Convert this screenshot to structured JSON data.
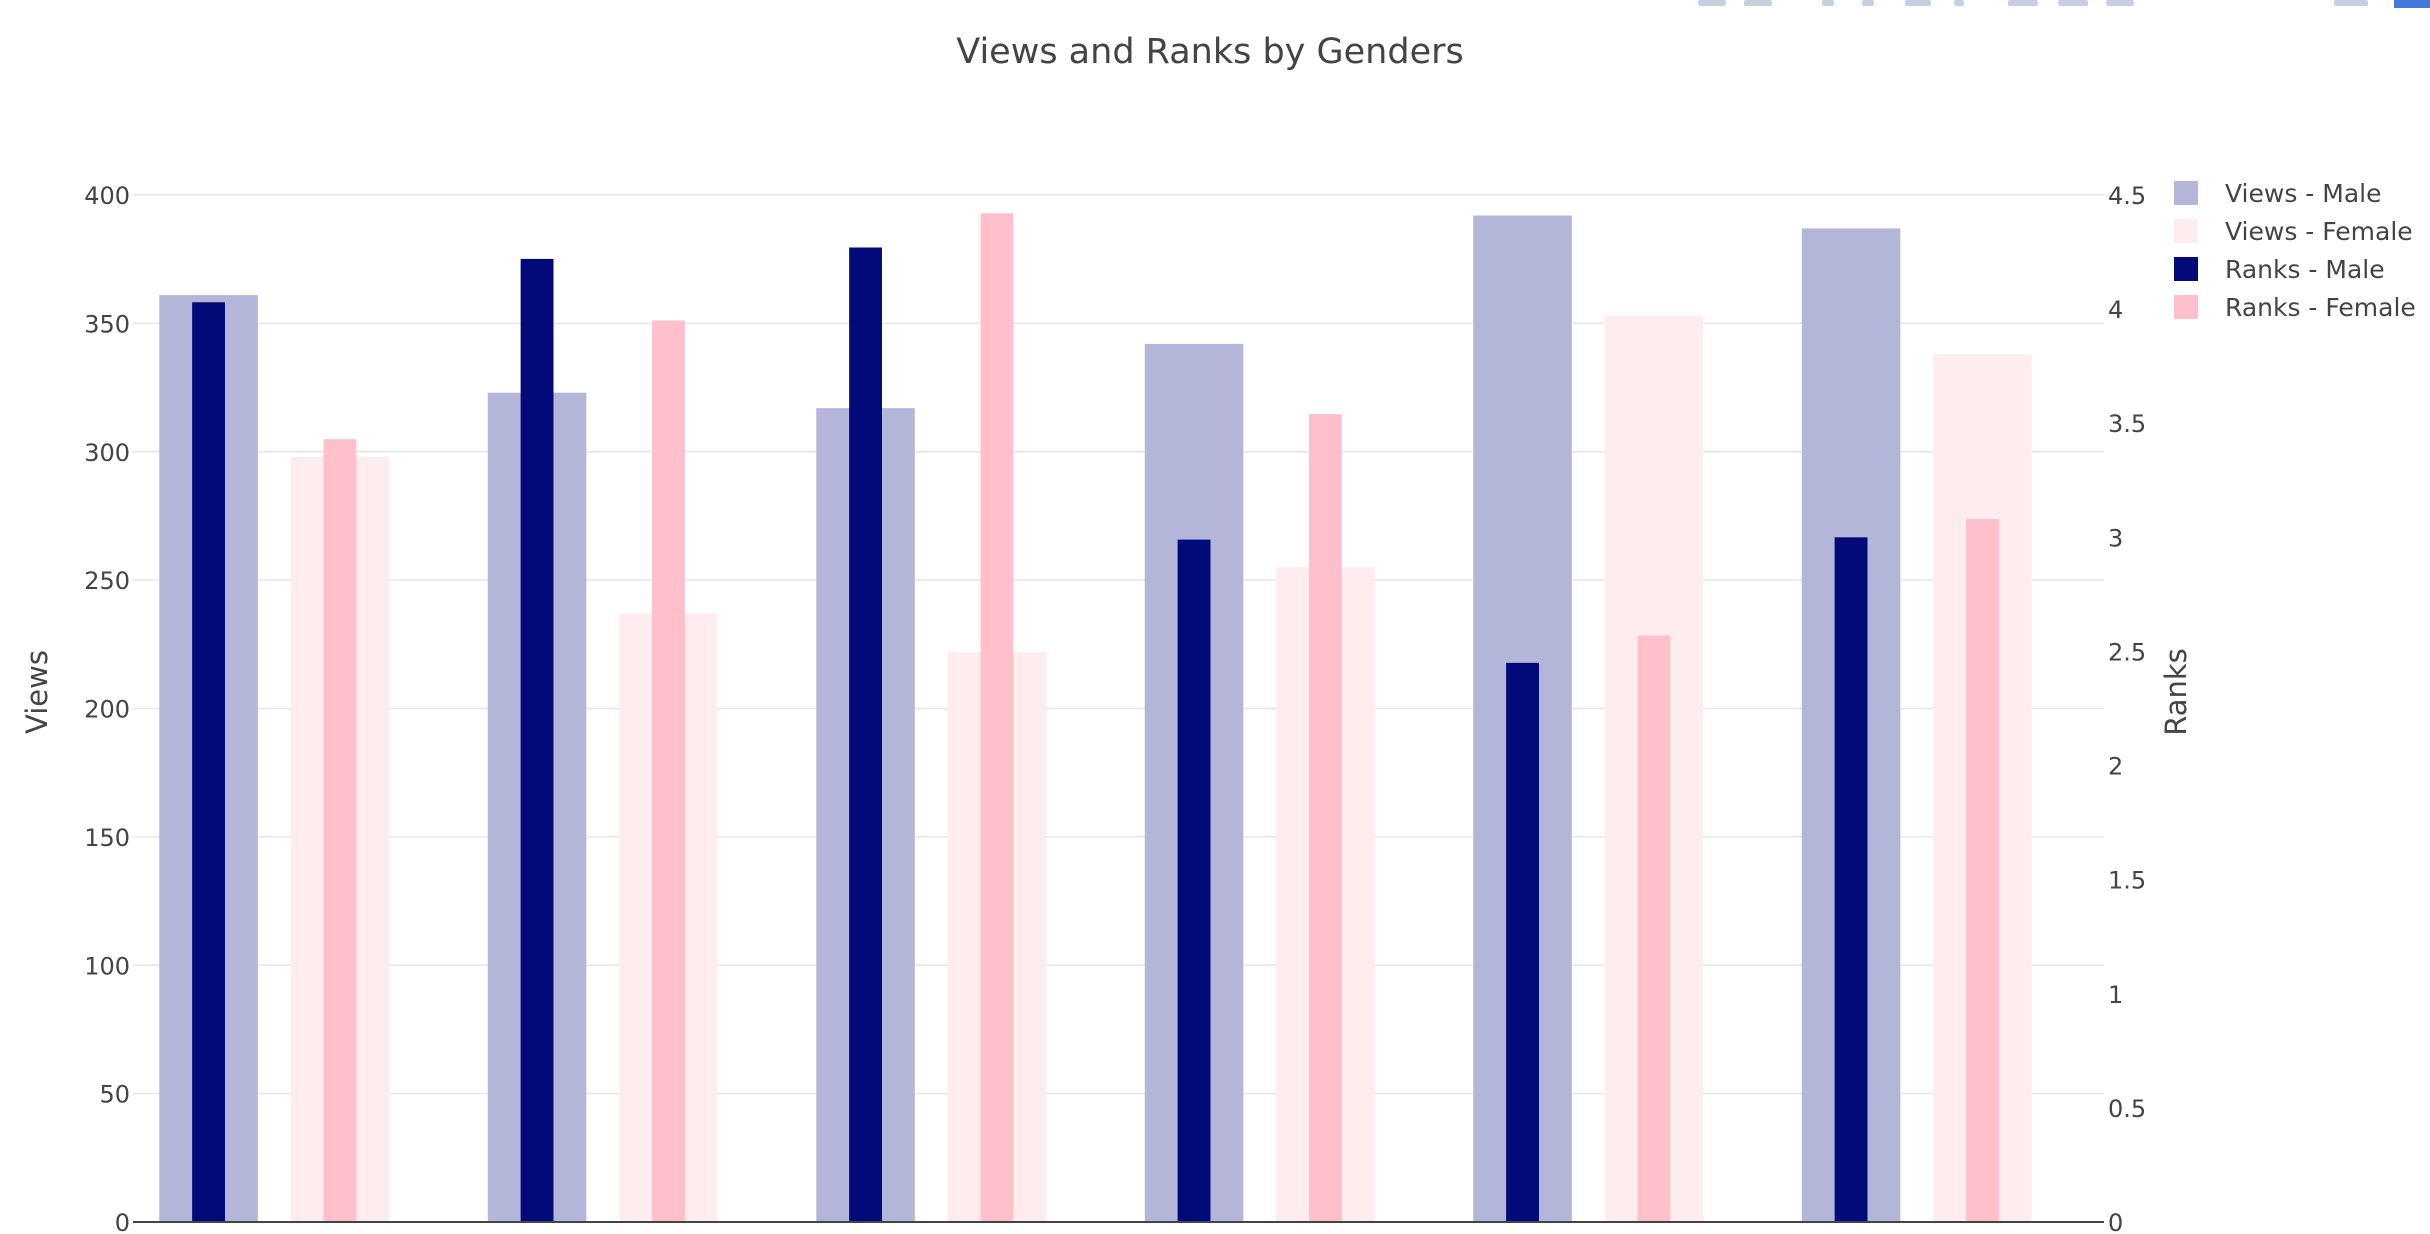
{
  "chart_data": {
    "type": "bar",
    "title": "Views and Ranks by Genders",
    "categories": [
      "",
      "",
      "",
      "",
      "",
      ""
    ],
    "y_left": {
      "label": "Views",
      "range": [
        0,
        400
      ],
      "ticks": [
        0,
        50,
        100,
        150,
        200,
        250,
        300,
        350,
        400
      ],
      "tick_labels": [
        "0",
        "50",
        "100",
        "150",
        "200",
        "250",
        "300",
        "350",
        "400"
      ]
    },
    "y_right": {
      "label": "Ranks",
      "range": [
        0,
        4.5
      ],
      "ticks": [
        0,
        0.5,
        1,
        1.5,
        2,
        2.5,
        3,
        3.5,
        4,
        4.5
      ],
      "tick_labels": [
        "0",
        "0.5",
        "1",
        "1.5",
        "2",
        "2.5",
        "3",
        "3.5",
        "4",
        "4.5"
      ]
    },
    "grid": true,
    "legend_position": "top-right",
    "series": [
      {
        "name": "Views - Male",
        "axis": "left",
        "color": "#b3b6d8",
        "values": [
          361,
          323,
          317,
          342,
          392,
          387
        ]
      },
      {
        "name": "Views - Female",
        "axis": "left",
        "color": "#ffecef",
        "values": [
          298,
          237,
          222,
          255,
          353,
          338
        ]
      },
      {
        "name": "Ranks - Male",
        "axis": "right",
        "color": "#020a7a",
        "values": [
          4.03,
          4.22,
          4.27,
          2.99,
          2.45,
          3.0
        ]
      },
      {
        "name": "Ranks - Female",
        "axis": "right",
        "color": "#ffc0cc",
        "values": [
          3.43,
          3.95,
          4.42,
          3.54,
          2.57,
          3.08
        ]
      }
    ]
  }
}
